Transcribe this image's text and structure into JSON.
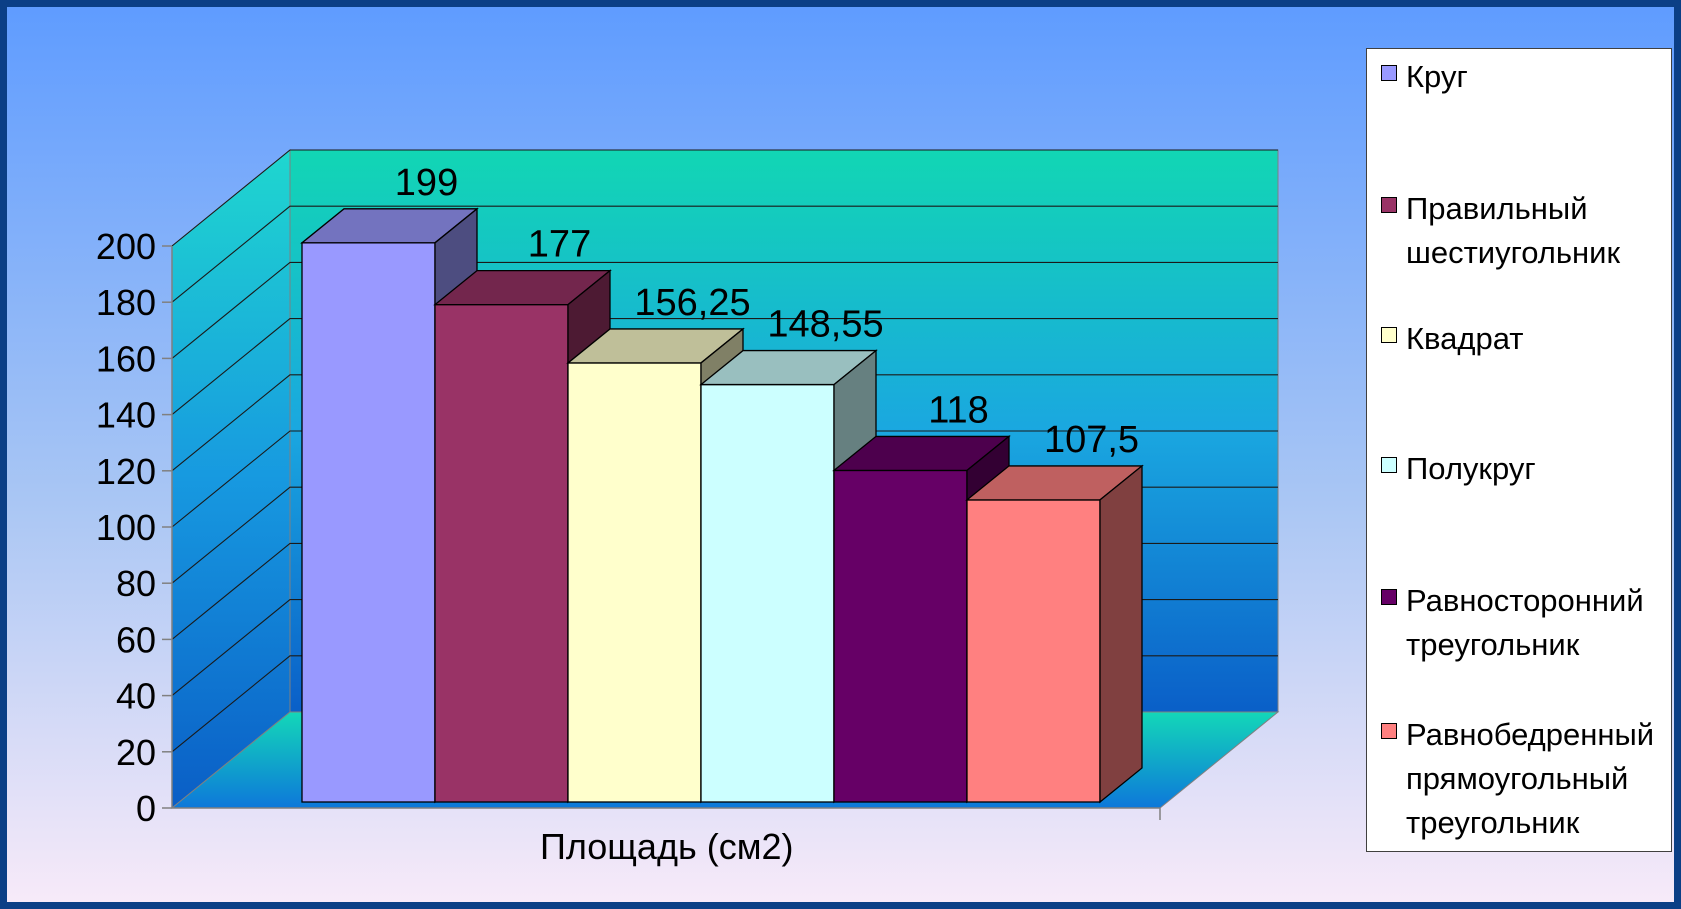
{
  "chart_data": {
    "type": "bar",
    "style": "3d-clustered-column",
    "categories": [
      "Площадь (см2)"
    ],
    "series": [
      {
        "name": "Круг",
        "value": 199,
        "label": "199",
        "color": "#9999ff"
      },
      {
        "name": "Правильный шестиугольник",
        "value": 177,
        "label": "177",
        "color": "#993366"
      },
      {
        "name": "Квадрат",
        "value": 156.25,
        "label": "156,25",
        "color": "#ffffcc"
      },
      {
        "name": "Полукруг",
        "value": 148.55,
        "label": "148,55",
        "color": "#ccffff"
      },
      {
        "name": "Равносторонний треугольник",
        "value": 118,
        "label": "118",
        "color": "#660066"
      },
      {
        "name": "Равнобедренный прямоугольный треугольник",
        "value": 107.5,
        "label": "107,5",
        "color": "#ff8080"
      }
    ],
    "xlabel": "Площадь (см2)",
    "ylabel": "",
    "ylim": [
      0,
      200
    ],
    "yticks": [
      "0",
      "20",
      "40",
      "60",
      "80",
      "100",
      "120",
      "140",
      "160",
      "180",
      "200"
    ],
    "grid": true,
    "legend_position": "right"
  },
  "colors": {
    "slide_bg_top": "#5f9cff",
    "slide_bg_bottom": "#f7eaf9",
    "slide_border": "#0b3f86",
    "wall_top": "#12d6b4",
    "wall_bottom": "#0a5fc8"
  }
}
